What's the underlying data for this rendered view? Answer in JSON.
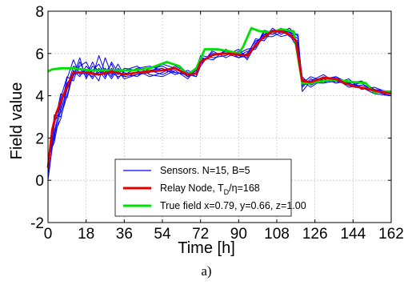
{
  "chart_data": {
    "type": "line",
    "xlabel": "Time [h]",
    "ylabel": "Field value",
    "caption": "a)",
    "xlim": [
      0,
      162
    ],
    "ylim": [
      -2,
      8
    ],
    "xticks": [
      0,
      18,
      36,
      54,
      72,
      90,
      108,
      126,
      144,
      162
    ],
    "yticks": [
      -2,
      0,
      2,
      4,
      6,
      8
    ],
    "grid": true,
    "legend_position": "bottom-center",
    "colors": {
      "sensors": "#0000ff",
      "relay": "#e00000",
      "truth": "#00e000"
    },
    "legend": {
      "sensors": "Sensors. N=15, B=5",
      "relay_prefix": "Relay Node, T",
      "relay_sub": "D",
      "relay_suffix": "/η=168",
      "truth": "True field x=0.79, y=0.66, z=1.00"
    },
    "true_field": {
      "x": [
        0,
        2,
        6,
        12,
        20,
        30,
        40,
        48,
        56,
        62,
        66,
        70,
        74,
        80,
        86,
        90,
        92,
        96,
        100,
        106,
        110,
        116,
        120,
        124,
        130,
        136,
        144,
        150,
        154,
        158,
        162
      ],
      "y": [
        5.15,
        5.25,
        5.3,
        5.3,
        5.2,
        5.2,
        5.2,
        5.3,
        5.6,
        5.4,
        5.0,
        5.3,
        6.2,
        6.2,
        6.1,
        6.0,
        6.3,
        7.2,
        7.05,
        7.0,
        7.15,
        7.05,
        4.6,
        4.6,
        4.7,
        4.75,
        4.65,
        4.6,
        4.15,
        4.2,
        4.2
      ]
    },
    "relay_node": {
      "x": [
        0,
        2,
        4,
        8,
        12,
        18,
        24,
        30,
        36,
        42,
        48,
        54,
        60,
        66,
        70,
        72,
        78,
        84,
        90,
        94,
        98,
        102,
        106,
        110,
        114,
        117,
        120,
        124,
        130,
        136,
        140,
        144,
        150,
        156,
        162
      ],
      "y": [
        0.6,
        2.4,
        3.2,
        4.2,
        5.1,
        5.1,
        5.0,
        5.15,
        5.0,
        5.1,
        5.15,
        5.2,
        5.3,
        5.0,
        5.05,
        5.6,
        5.95,
        6.0,
        5.95,
        5.9,
        6.4,
        6.8,
        7.05,
        7.05,
        6.9,
        6.6,
        4.7,
        4.65,
        4.85,
        4.8,
        4.6,
        4.45,
        4.35,
        4.2,
        4.1
      ]
    },
    "sensors": [
      {
        "x": [
          0,
          3,
          6,
          9,
          12,
          15,
          18,
          21,
          24,
          27,
          30,
          33,
          36,
          42,
          48,
          54,
          60,
          66,
          70,
          72,
          78,
          84,
          90,
          94,
          98,
          102,
          106,
          110,
          114,
          118,
          120,
          124,
          130,
          136,
          142,
          148,
          154,
          162
        ],
        "y": [
          0.0,
          2.3,
          3.6,
          4.6,
          5.0,
          5.1,
          5.2,
          4.8,
          5.3,
          5.0,
          5.1,
          4.9,
          5.0,
          5.1,
          5.2,
          5.0,
          5.3,
          4.9,
          5.1,
          5.7,
          5.9,
          6.1,
          5.9,
          5.8,
          6.5,
          6.9,
          7.1,
          7.0,
          6.9,
          6.5,
          4.8,
          4.6,
          4.9,
          4.7,
          4.6,
          4.4,
          4.3,
          4.1
        ]
      },
      {
        "x": [
          0,
          3,
          6,
          9,
          12,
          15,
          18,
          21,
          24,
          27,
          30,
          33,
          36,
          42,
          48,
          54,
          60,
          66,
          70,
          72,
          78,
          84,
          90,
          94,
          98,
          102,
          106,
          110,
          114,
          118,
          120,
          124,
          130,
          136,
          142,
          148,
          154,
          162
        ],
        "y": [
          0.4,
          2.8,
          3.2,
          4.4,
          5.4,
          5.3,
          4.9,
          5.6,
          5.0,
          5.2,
          4.8,
          5.3,
          5.1,
          4.9,
          5.3,
          5.4,
          5.1,
          5.0,
          5.2,
          5.5,
          6.1,
          5.8,
          6.1,
          5.9,
          6.3,
          7.0,
          6.9,
          7.1,
          7.0,
          6.7,
          4.4,
          4.8,
          4.6,
          4.9,
          4.5,
          4.6,
          4.2,
          4.0
        ]
      },
      {
        "x": [
          0,
          3,
          6,
          9,
          12,
          15,
          18,
          21,
          24,
          27,
          30,
          33,
          36,
          42,
          48,
          54,
          60,
          66,
          70,
          72,
          78,
          84,
          90,
          94,
          98,
          102,
          106,
          110,
          114,
          118,
          120,
          124,
          130,
          136,
          142,
          148,
          154,
          162
        ],
        "y": [
          0.9,
          2.0,
          3.9,
          4.9,
          4.7,
          5.6,
          5.0,
          5.2,
          5.5,
          4.9,
          5.3,
          5.0,
          5.3,
          5.2,
          4.9,
          5.1,
          5.4,
          5.1,
          4.9,
          5.8,
          5.7,
          6.2,
          5.8,
          6.0,
          6.6,
          6.7,
          7.2,
          6.9,
          7.1,
          6.4,
          4.9,
          4.5,
          4.8,
          4.6,
          4.8,
          4.3,
          4.4,
          4.1
        ]
      },
      {
        "x": [
          0,
          3,
          6,
          9,
          12,
          15,
          18,
          21,
          24,
          27,
          30,
          33,
          36,
          42,
          48,
          54,
          60,
          66,
          70,
          72,
          78,
          84,
          90,
          94,
          98,
          102,
          106,
          110,
          114,
          118,
          120,
          124,
          130,
          136,
          142,
          148,
          154,
          162
        ],
        "y": [
          0.2,
          3.1,
          3.0,
          4.0,
          5.2,
          4.9,
          5.4,
          5.1,
          4.7,
          5.8,
          5.0,
          5.2,
          4.8,
          5.0,
          5.2,
          5.3,
          5.0,
          5.2,
          5.0,
          5.6,
          6.0,
          6.0,
          5.9,
          6.1,
          6.2,
          6.9,
          7.0,
          7.2,
          6.8,
          6.6,
          4.6,
          4.9,
          4.7,
          4.8,
          4.4,
          4.5,
          4.3,
          4.2
        ]
      },
      {
        "x": [
          0,
          3,
          6,
          9,
          12,
          15,
          18,
          21,
          24,
          27,
          30,
          33,
          36,
          42,
          48,
          54,
          60,
          66,
          70,
          72,
          78,
          84,
          90,
          94,
          98,
          102,
          106,
          110,
          114,
          118,
          120,
          124,
          130,
          136,
          142,
          148,
          154,
          162
        ],
        "y": [
          1.1,
          1.8,
          3.4,
          4.8,
          5.7,
          5.0,
          5.1,
          4.9,
          5.9,
          5.1,
          5.5,
          4.8,
          5.2,
          5.4,
          5.0,
          4.9,
          5.2,
          4.8,
          5.3,
          5.9,
          5.8,
          5.9,
          6.2,
          5.7,
          6.4,
          6.8,
          6.8,
          7.0,
          7.2,
          6.8,
          4.2,
          4.7,
          5.0,
          4.6,
          4.7,
          4.4,
          4.1,
          4.0
        ]
      },
      {
        "x": [
          0,
          3,
          6,
          9,
          12,
          15,
          18,
          21,
          24,
          27,
          30,
          33,
          36,
          42,
          48,
          54,
          60,
          66,
          70,
          72,
          78,
          84,
          90,
          94,
          98,
          102,
          106,
          110,
          114,
          118,
          120,
          124,
          130,
          136,
          142,
          148,
          154,
          162
        ],
        "y": [
          0.5,
          2.6,
          4.1,
          3.9,
          5.1,
          5.4,
          5.6,
          5.0,
          5.1,
          5.3,
          4.9,
          5.5,
          5.0,
          5.3,
          5.4,
          5.2,
          5.1,
          5.0,
          4.9,
          5.4,
          6.2,
          6.1,
          6.0,
          6.2,
          6.3,
          7.1,
          7.0,
          6.8,
          6.9,
          6.2,
          4.7,
          4.4,
          4.8,
          4.9,
          4.6,
          4.7,
          4.3,
          4.1
        ]
      },
      {
        "x": [
          0,
          3,
          6,
          9,
          12,
          15,
          18,
          21,
          24,
          27,
          30,
          33,
          36,
          42,
          48,
          54,
          60,
          66,
          70,
          72,
          78,
          84,
          90,
          94,
          98,
          102,
          106,
          110,
          114,
          118,
          120,
          124,
          130,
          136,
          142,
          148,
          154,
          162
        ],
        "y": [
          0.7,
          2.2,
          2.9,
          4.3,
          4.9,
          5.8,
          4.8,
          5.4,
          5.2,
          4.8,
          5.6,
          5.1,
          4.9,
          5.0,
          5.1,
          5.5,
          5.3,
          4.9,
          5.2,
          5.7,
          5.9,
          6.0,
          5.8,
          5.9,
          6.7,
          6.6,
          7.1,
          7.1,
          7.0,
          6.9,
          4.5,
          4.6,
          4.6,
          4.7,
          4.5,
          4.4,
          4.2,
          4.2
        ]
      }
    ]
  }
}
